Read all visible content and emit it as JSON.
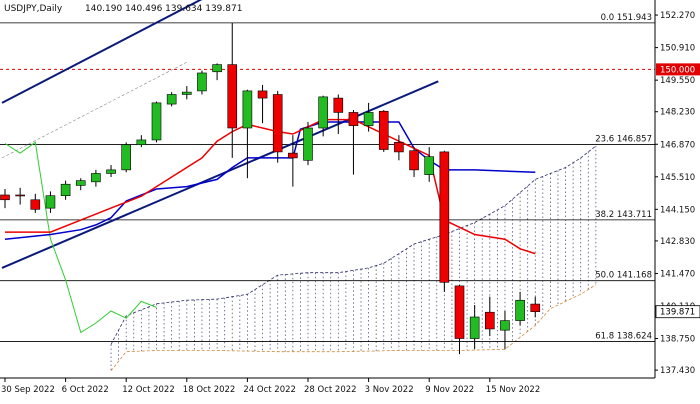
{
  "header": {
    "symbol": "USDJPY,Daily",
    "ohlc": "140.190 140.496 139.634 139.871"
  },
  "chart_data": {
    "type": "candlestick",
    "symbol": "USDJPY",
    "timeframe": "Daily",
    "last_ohlc": {
      "open": 140.19,
      "high": 140.496,
      "low": 139.634,
      "close": 139.871
    },
    "ylim": [
      137.1,
      152.9
    ],
    "y_ticks": [
      "152.270",
      "150.910",
      "149.550",
      "148.230",
      "146.870",
      "145.510",
      "144.150",
      "142.830",
      "141.470",
      "140.110",
      "138.750",
      "137.430"
    ],
    "x_ticks": [
      {
        "index": 0,
        "label": "30 Sep 2022"
      },
      {
        "index": 4,
        "label": "6 Oct 2022"
      },
      {
        "index": 8,
        "label": "12 Oct 2022"
      },
      {
        "index": 12,
        "label": "18 Oct 2022"
      },
      {
        "index": 16,
        "label": "24 Oct 2022"
      },
      {
        "index": 20,
        "label": "28 Oct 2022"
      },
      {
        "index": 24,
        "label": "3 Nov 2022"
      },
      {
        "index": 28,
        "label": "9 Nov 2022"
      },
      {
        "index": 32,
        "label": "15 Nov 2022"
      }
    ],
    "candles": [
      {
        "o": 144.75,
        "h": 145.0,
        "l": 144.2,
        "c": 144.55
      },
      {
        "o": 144.75,
        "h": 145.05,
        "l": 144.35,
        "c": 144.72
      },
      {
        "o": 144.55,
        "h": 144.8,
        "l": 144.0,
        "c": 144.15
      },
      {
        "o": 144.2,
        "h": 144.9,
        "l": 144.0,
        "c": 144.72
      },
      {
        "o": 144.72,
        "h": 145.35,
        "l": 144.55,
        "c": 145.2
      },
      {
        "o": 145.15,
        "h": 145.45,
        "l": 144.95,
        "c": 145.35
      },
      {
        "o": 145.3,
        "h": 145.8,
        "l": 145.1,
        "c": 145.65
      },
      {
        "o": 145.65,
        "h": 146.0,
        "l": 145.5,
        "c": 145.8
      },
      {
        "o": 145.8,
        "h": 146.95,
        "l": 145.7,
        "c": 146.85
      },
      {
        "o": 146.85,
        "h": 147.25,
        "l": 146.75,
        "c": 147.05
      },
      {
        "o": 147.05,
        "h": 148.65,
        "l": 146.95,
        "c": 148.6
      },
      {
        "o": 148.55,
        "h": 149.05,
        "l": 148.45,
        "c": 148.95
      },
      {
        "o": 148.95,
        "h": 149.3,
        "l": 148.75,
        "c": 149.05
      },
      {
        "o": 149.1,
        "h": 149.95,
        "l": 148.95,
        "c": 149.85
      },
      {
        "o": 149.9,
        "h": 150.25,
        "l": 149.55,
        "c": 150.2
      },
      {
        "o": 150.2,
        "h": 151.94,
        "l": 146.3,
        "c": 147.55
      },
      {
        "o": 147.55,
        "h": 149.15,
        "l": 145.45,
        "c": 149.1
      },
      {
        "o": 149.1,
        "h": 149.35,
        "l": 147.75,
        "c": 148.8
      },
      {
        "o": 148.95,
        "h": 149.1,
        "l": 146.1,
        "c": 146.55
      },
      {
        "o": 146.5,
        "h": 147.25,
        "l": 145.1,
        "c": 146.3
      },
      {
        "o": 146.2,
        "h": 147.8,
        "l": 146.0,
        "c": 147.55
      },
      {
        "o": 147.55,
        "h": 148.9,
        "l": 147.2,
        "c": 148.85
      },
      {
        "o": 148.8,
        "h": 148.95,
        "l": 147.3,
        "c": 148.2
      },
      {
        "o": 148.2,
        "h": 148.3,
        "l": 145.6,
        "c": 147.65
      },
      {
        "o": 147.65,
        "h": 148.6,
        "l": 147.4,
        "c": 148.2
      },
      {
        "o": 148.25,
        "h": 148.3,
        "l": 146.55,
        "c": 146.65
      },
      {
        "o": 146.95,
        "h": 147.25,
        "l": 146.2,
        "c": 146.55
      },
      {
        "o": 146.6,
        "h": 146.75,
        "l": 145.5,
        "c": 145.8
      },
      {
        "o": 145.6,
        "h": 146.75,
        "l": 145.3,
        "c": 146.35
      },
      {
        "o": 146.55,
        "h": 146.6,
        "l": 140.7,
        "c": 141.1
      },
      {
        "o": 140.95,
        "h": 141.0,
        "l": 138.1,
        "c": 138.75
      },
      {
        "o": 138.75,
        "h": 140.15,
        "l": 138.3,
        "c": 139.65
      },
      {
        "o": 139.85,
        "h": 140.5,
        "l": 138.85,
        "c": 139.15
      },
      {
        "o": 139.1,
        "h": 139.9,
        "l": 138.3,
        "c": 139.5
      },
      {
        "o": 139.5,
        "h": 140.7,
        "l": 139.3,
        "c": 140.35
      },
      {
        "o": 140.19,
        "h": 140.496,
        "l": 139.634,
        "c": 139.871
      }
    ],
    "fibonacci": [
      {
        "label": "0.0 151.943",
        "value": 151.943
      },
      {
        "label": "23.6 146.857",
        "value": 146.857
      },
      {
        "label": "38.2 143.711",
        "value": 143.711
      },
      {
        "label": "50.0 141.168",
        "value": 141.168
      },
      {
        "label": "61.8 138.624",
        "value": 138.624
      }
    ],
    "price_marker": {
      "label": "150.000",
      "value": 150.0,
      "color": "#e00000"
    },
    "last_price_label": "139.871",
    "colors": {
      "bull": "#22bb22",
      "bear": "#ee0000",
      "tenkan": "#ee0000",
      "kijun": "#0000cc",
      "chikou": "#33cc33",
      "channel": "#0a1a7a",
      "cloud": "#2b2b6b",
      "cloud_edge_b": "#d08a3a"
    },
    "tenkan": [
      [
        0,
        143.2
      ],
      [
        3,
        143.2
      ],
      [
        5,
        143.7
      ],
      [
        7,
        144.2
      ],
      [
        9,
        144.7
      ],
      [
        11,
        145.5
      ],
      [
        13,
        146.3
      ],
      [
        14,
        147.0
      ],
      [
        15,
        147.4
      ],
      [
        16,
        147.7
      ],
      [
        18,
        147.4
      ],
      [
        19,
        147.3
      ],
      [
        21,
        147.9
      ],
      [
        23,
        147.9
      ],
      [
        25,
        147.3
      ],
      [
        27,
        146.7
      ],
      [
        28,
        146.4
      ],
      [
        29,
        143.7
      ],
      [
        31,
        143.1
      ],
      [
        33,
        142.9
      ],
      [
        34,
        142.5
      ],
      [
        35,
        142.3
      ]
    ],
    "kijun": [
      [
        0,
        142.9
      ],
      [
        3,
        143.1
      ],
      [
        5,
        143.3
      ],
      [
        6,
        143.5
      ],
      [
        7,
        143.8
      ],
      [
        8,
        144.5
      ],
      [
        10,
        145.0
      ],
      [
        12,
        145.1
      ],
      [
        14,
        145.4
      ],
      [
        15,
        145.9
      ],
      [
        16,
        146.3
      ],
      [
        17,
        146.3
      ],
      [
        19,
        146.3
      ],
      [
        19.5,
        147.5
      ],
      [
        21,
        147.8
      ],
      [
        24,
        147.8
      ],
      [
        26,
        147.8
      ],
      [
        27,
        146.7
      ],
      [
        28,
        146.2
      ],
      [
        29,
        145.8
      ],
      [
        31,
        145.8
      ],
      [
        35,
        145.7
      ]
    ],
    "chikou": [
      [
        0,
        146.9
      ],
      [
        1,
        146.5
      ],
      [
        2,
        146.95
      ],
      [
        3,
        142.9
      ],
      [
        4,
        141.2
      ],
      [
        5,
        139.0
      ],
      [
        6,
        139.4
      ],
      [
        7,
        139.9
      ],
      [
        8,
        139.6
      ],
      [
        9,
        140.3
      ],
      [
        10,
        140.05
      ]
    ],
    "senkou_a": [
      [
        7,
        138.5
      ],
      [
        8,
        139.7
      ],
      [
        10,
        140.2
      ],
      [
        12,
        140.35
      ],
      [
        14,
        140.4
      ],
      [
        16,
        140.6
      ],
      [
        18,
        141.4
      ],
      [
        20,
        141.5
      ],
      [
        22,
        141.5
      ],
      [
        24,
        141.7
      ],
      [
        25,
        141.9
      ],
      [
        27,
        142.7
      ],
      [
        29,
        143.1
      ],
      [
        31,
        143.6
      ],
      [
        33,
        144.3
      ],
      [
        35,
        145.4
      ],
      [
        37,
        145.9
      ],
      [
        38,
        146.3
      ],
      [
        39,
        146.8
      ]
    ],
    "senkou_b": [
      [
        7,
        137.4
      ],
      [
        8,
        138.2
      ],
      [
        10,
        138.25
      ],
      [
        14,
        138.25
      ],
      [
        18,
        138.2
      ],
      [
        22,
        138.2
      ],
      [
        26,
        138.25
      ],
      [
        30,
        138.25
      ],
      [
        33,
        138.3
      ],
      [
        35,
        139.3
      ],
      [
        36,
        140.0
      ],
      [
        37,
        140.3
      ],
      [
        38,
        140.6
      ],
      [
        39,
        141.0
      ]
    ],
    "channel_lines": [
      {
        "name": "",
        "points": [
          [
            -0.2,
            148.6
          ],
          [
            15.0,
            153.6
          ]
        ]
      },
      {
        "name": "",
        "points": [
          [
            -0.2,
            141.7
          ],
          [
            28.6,
            149.5
          ]
        ]
      }
    ]
  }
}
